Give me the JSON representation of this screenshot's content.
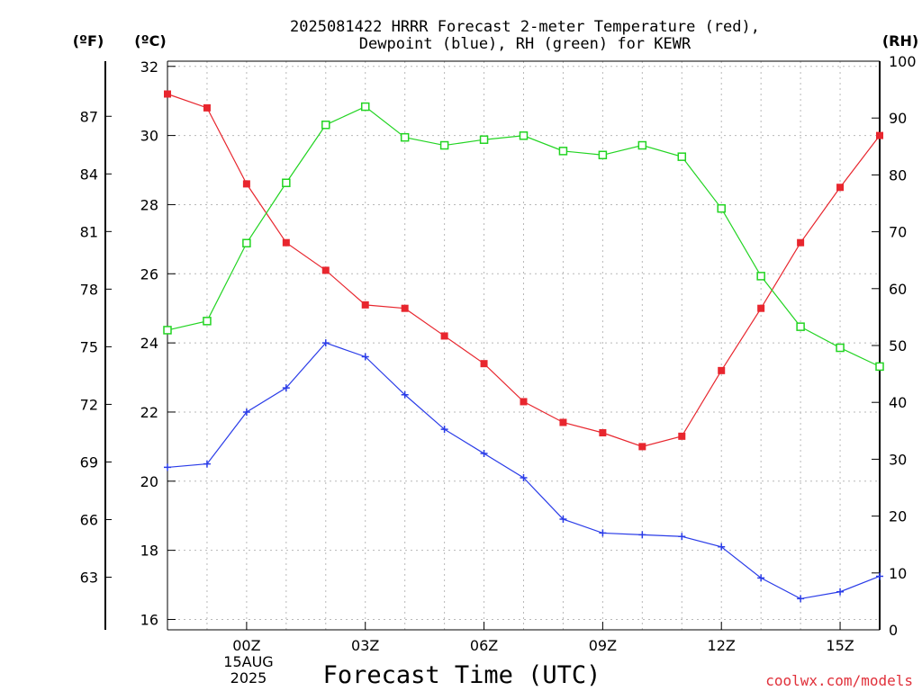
{
  "title_line1": "2025081422 HRRR Forecast 2-meter Temperature (red),",
  "title_line2": "Dewpoint (blue), RH (green) for KEWR",
  "units": {
    "f": "(ºF)",
    "c": "(ºC)",
    "rh": "(RH)"
  },
  "date_line1": "15AUG",
  "date_line2": "2025",
  "credit": "coolwx.com/models",
  "chart_data": {
    "type": "line",
    "xlabel": "Forecast Time (UTC)",
    "x_hours": [
      -2,
      -1,
      0,
      1,
      2,
      3,
      4,
      5,
      6,
      7,
      8,
      9,
      10,
      11,
      12,
      13,
      14,
      15,
      16
    ],
    "x_ticks": [
      {
        "hour": 0,
        "label": "00Z"
      },
      {
        "hour": 3,
        "label": "03Z"
      },
      {
        "hour": 6,
        "label": "06Z"
      },
      {
        "hour": 9,
        "label": "09Z"
      },
      {
        "hour": 12,
        "label": "12Z"
      },
      {
        "hour": 15,
        "label": "15Z"
      }
    ],
    "xlim": [
      -2,
      16
    ],
    "ylim_c": [
      15.7,
      32.15
    ],
    "yticks_c": [
      16,
      18,
      20,
      22,
      24,
      26,
      28,
      30,
      32
    ],
    "yticks_f": [
      63,
      66,
      69,
      72,
      75,
      78,
      81,
      84,
      87
    ],
    "ylim_rh": [
      0,
      100
    ],
    "yticks_rh": [
      0,
      10,
      20,
      30,
      40,
      50,
      60,
      70,
      80,
      90,
      100
    ],
    "grid": true,
    "series": [
      {
        "name": "Temperature",
        "axis": "c",
        "color": "#e8262e",
        "marker": "filled-square",
        "values": [
          31.2,
          30.8,
          28.6,
          26.9,
          26.1,
          25.1,
          25.0,
          24.2,
          23.4,
          22.3,
          21.7,
          21.4,
          21.0,
          21.3,
          23.2,
          25.0,
          26.9,
          28.5,
          30.0
        ]
      },
      {
        "name": "Dewpoint",
        "axis": "c",
        "color": "#2a3ce8",
        "marker": "plus",
        "values": [
          20.4,
          20.5,
          22.0,
          22.7,
          24.0,
          23.6,
          22.5,
          21.5,
          20.8,
          20.1,
          18.9,
          18.5,
          18.45,
          18.4,
          18.1,
          17.2,
          16.6,
          16.8,
          17.25
        ]
      },
      {
        "name": "RH",
        "axis": "rh",
        "color": "#22d422",
        "marker": "open-square",
        "values": [
          52.7,
          54.3,
          68.0,
          78.6,
          88.8,
          92.0,
          86.6,
          85.2,
          86.2,
          86.9,
          84.2,
          83.5,
          85.2,
          83.2,
          74.1,
          62.2,
          53.3,
          49.6,
          46.3
        ]
      }
    ]
  }
}
